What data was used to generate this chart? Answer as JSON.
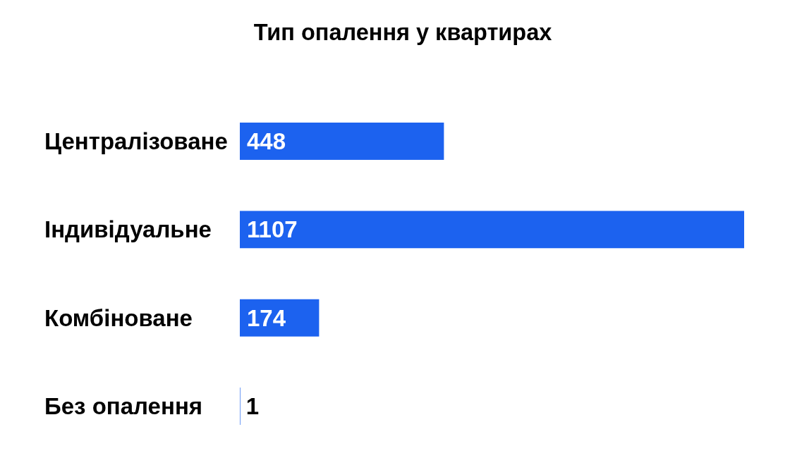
{
  "chart_data": {
    "type": "bar",
    "orientation": "horizontal",
    "title": "Тип опалення у квартирах",
    "categories": [
      "Централізоване",
      "Індивідуальне",
      "Комбіноване",
      "Без опалення"
    ],
    "values": [
      448,
      1107,
      174,
      1
    ],
    "color": "#1c62ef",
    "data_labels": true
  }
}
